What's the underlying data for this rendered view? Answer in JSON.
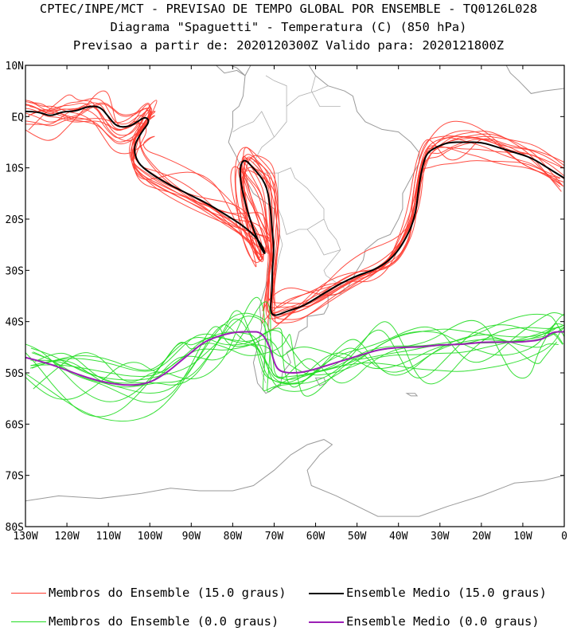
{
  "titles": {
    "line1": "CPTEC/INPE/MCT - PREVISAO DE TEMPO GLOBAL POR ENSEMBLE - TQ0126L028",
    "line2": "Diagrama \"Spaguetti\" - Temperatura (C) (850 hPa)",
    "line3": "Previsao a partir de: 2020120300Z  Valido para: 2020121800Z"
  },
  "colors": {
    "members_15": "#ff3b30",
    "mean_15": "#000000",
    "members_0": "#22dd22",
    "mean_0": "#9b1fb5",
    "coast": "#9a9a9a",
    "border": "#b0b0b0"
  },
  "chart_data": {
    "type": "line",
    "map_projection": "lat-lon",
    "xlim": [
      -130,
      0
    ],
    "ylim": [
      -80,
      10
    ],
    "x_ticks": [
      -130,
      -120,
      -110,
      -100,
      -90,
      -80,
      -70,
      -60,
      -50,
      -40,
      -30,
      -20,
      -10,
      0
    ],
    "x_tick_labels": [
      "130W",
      "120W",
      "110W",
      "100W",
      "90W",
      "80W",
      "70W",
      "60W",
      "50W",
      "40W",
      "30W",
      "20W",
      "10W",
      "0"
    ],
    "y_ticks": [
      10,
      0,
      -10,
      -20,
      -30,
      -40,
      -50,
      -60,
      -70,
      -80
    ],
    "y_tick_labels": [
      "10N",
      "EQ",
      "10S",
      "20S",
      "30S",
      "40S",
      "50S",
      "60S",
      "70S",
      "80S"
    ],
    "grid": false,
    "series": [
      {
        "name": "Ensemble Medio (15.0 graus)",
        "lon": [
          -130,
          -127,
          -124,
          -121,
          -118,
          -115,
          -112,
          -110,
          -108,
          -105,
          -103,
          -101,
          -100,
          -102,
          -104,
          -103,
          -100,
          -96,
          -91,
          -86,
          -82,
          -78,
          -75,
          -73,
          -72,
          -73,
          -75,
          -77,
          -78.5,
          -77.5,
          -75,
          -72,
          -71,
          -70.5,
          -70,
          -70.5,
          -70.5,
          -71,
          -70,
          -67,
          -63,
          -59,
          -55,
          -50,
          -46,
          -42,
          -39,
          -36,
          -35,
          -34,
          -33,
          -31,
          -28,
          -24,
          -20,
          -16,
          -12,
          -8,
          -4,
          0
        ],
        "lat": [
          1,
          1,
          0,
          1,
          1,
          2,
          2,
          0,
          -2,
          -2,
          -1,
          0,
          -1,
          -3,
          -6,
          -9,
          -11,
          -13,
          -15,
          -17,
          -19,
          -21,
          -23,
          -25,
          -27,
          -26,
          -22,
          -17,
          -11,
          -8,
          -10,
          -13,
          -17,
          -22,
          -26,
          -30,
          -34,
          -38,
          -39,
          -38,
          -37,
          -35,
          -33,
          -31,
          -30,
          -28,
          -25,
          -20,
          -13,
          -9,
          -7,
          -6,
          -5,
          -5,
          -5,
          -6,
          -7,
          -8,
          -10,
          -12
        ]
      },
      {
        "name": "Ensemble Medio (0.0 graus)",
        "lon": [
          -130,
          -125,
          -120,
          -115,
          -110,
          -105,
          -100,
          -96,
          -93,
          -90,
          -87,
          -84,
          -82,
          -79,
          -76,
          -73,
          -71,
          -70,
          -69,
          -67,
          -64,
          -61,
          -57,
          -53,
          -49,
          -45,
          -40,
          -35,
          -30,
          -25,
          -20,
          -15,
          -10,
          -5,
          -3,
          0
        ],
        "lat": [
          -47,
          -48,
          -49.5,
          -51,
          -52,
          -52.5,
          -52,
          -50,
          -48,
          -46,
          -44,
          -43,
          -42.5,
          -42,
          -42,
          -42,
          -45,
          -48,
          -49.5,
          -50,
          -50,
          -49.5,
          -48.5,
          -47.5,
          -46.5,
          -45.5,
          -45,
          -45,
          -44.5,
          -44.5,
          -44,
          -44,
          -44,
          -43.5,
          -42,
          -42
        ]
      }
    ]
  },
  "legend": [
    {
      "label": "Membros do Ensemble (15.0 graus)",
      "color": "#ff3b30",
      "width": 1
    },
    {
      "label": "Ensemble Medio (15.0 graus)",
      "color": "#000000",
      "width": 2
    },
    {
      "label": "Membros do Ensemble (0.0 graus)",
      "color": "#22dd22",
      "width": 1
    },
    {
      "label": "Ensemble Medio (0.0 graus)",
      "color": "#9b1fb5",
      "width": 2
    }
  ]
}
